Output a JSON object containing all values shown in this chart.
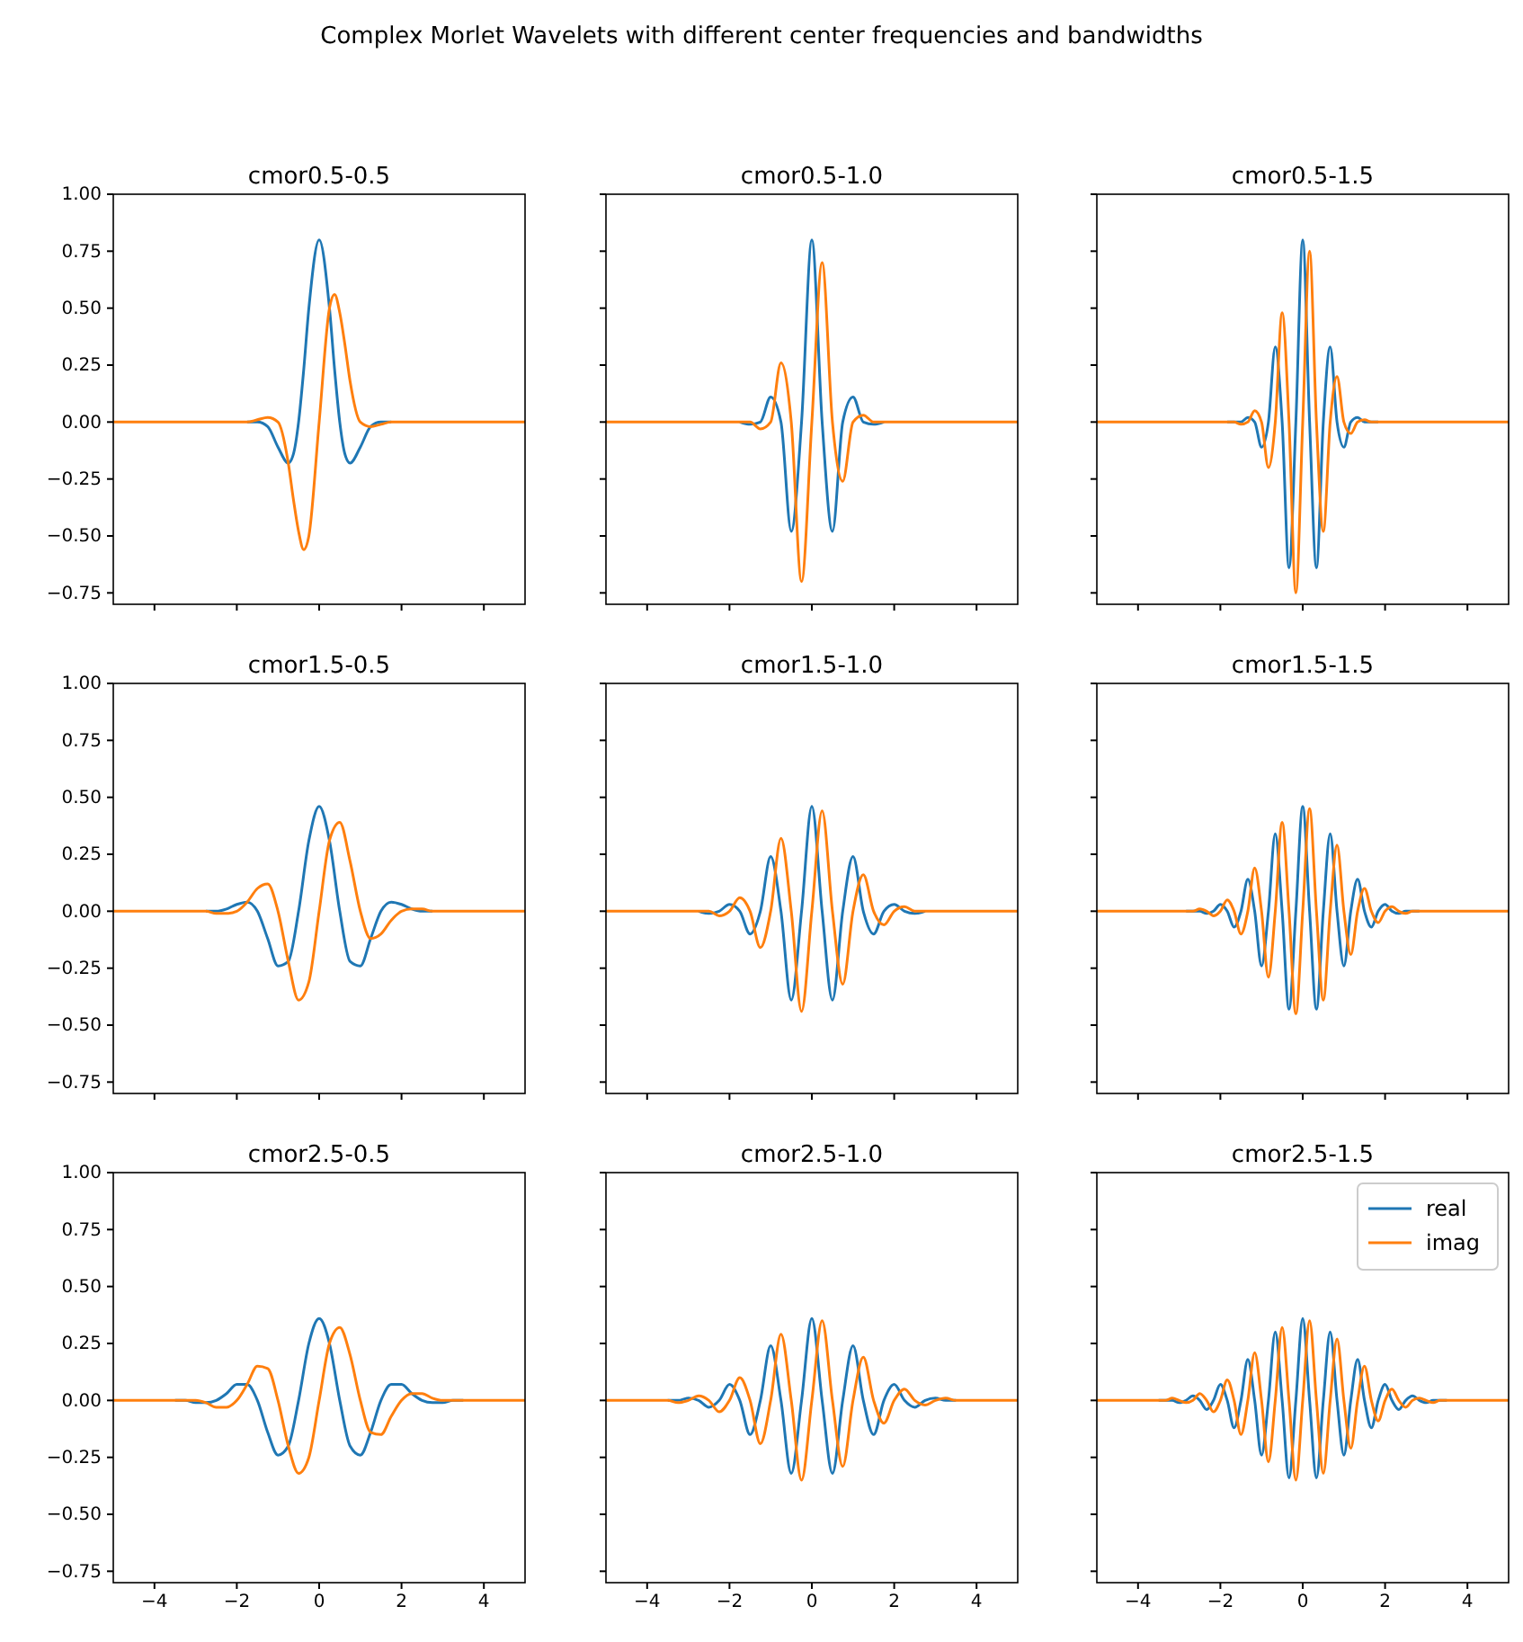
{
  "chart_data": [
    {
      "type": "line",
      "title": "cmor0.5-0.5",
      "annotations": [
        "Complex Morlet Wavelets with different center frequencies and bandwidths"
      ],
      "xlim": [
        -5,
        5
      ],
      "ylim": [
        -0.8,
        1.0
      ],
      "xticks": [
        {
          "value": -4,
          "label": null
        },
        {
          "value": -2,
          "label": null
        },
        {
          "value": 0,
          "label": null
        },
        {
          "value": 2,
          "label": null
        },
        {
          "value": 4,
          "label": null
        }
      ],
      "yticks": [
        {
          "value": -0.75,
          "label": "−0.75"
        },
        {
          "value": -0.5,
          "label": "−0.50"
        },
        {
          "value": -0.25,
          "label": "−0.25"
        },
        {
          "value": 0,
          "label": "0.00"
        },
        {
          "value": 0.25,
          "label": "0.25"
        },
        {
          "value": 0.5,
          "label": "0.50"
        },
        {
          "value": 0.75,
          "label": "0.75"
        },
        {
          "value": 1,
          "label": "1.00"
        }
      ],
      "tick_labels": "y",
      "x": [
        -5,
        -2,
        -1.75,
        -1.5,
        -1.25,
        -1,
        -0.75,
        -0.625,
        -0.5,
        -0.375,
        -0.25,
        0,
        0.25,
        0.375,
        0.5,
        0.625,
        0.75,
        1,
        1.25,
        1.5,
        1.75,
        2,
        5
      ],
      "series": [
        {
          "color": "#1f77b4",
          "values": [
            null,
            null,
            0,
            0,
            -0.02,
            -0.11,
            -0.18,
            -0.14,
            0,
            0.23,
            0.5,
            0.8,
            0.5,
            0.23,
            0,
            -0.14,
            -0.18,
            -0.11,
            -0.02,
            0,
            0,
            null,
            null
          ]
        },
        {
          "color": "#ff7f0e",
          "values": [
            0,
            0,
            0,
            0.01,
            0.02,
            0,
            -0.18,
            -0.34,
            -0.48,
            -0.56,
            -0.5,
            0,
            0.5,
            0.56,
            0.48,
            0.34,
            0.18,
            0,
            -0.02,
            -0.01,
            0,
            0,
            0
          ]
        }
      ]
    },
    {
      "type": "line",
      "title": "cmor0.5-1.0",
      "xlim": [
        -5,
        5
      ],
      "ylim": [
        -0.8,
        1.0
      ],
      "xticks": [
        {
          "value": -4,
          "label": null
        },
        {
          "value": -2,
          "label": null
        },
        {
          "value": 0,
          "label": null
        },
        {
          "value": 2,
          "label": null
        },
        {
          "value": 4,
          "label": null
        }
      ],
      "yticks": [
        {
          "value": -0.75,
          "label": null
        },
        {
          "value": -0.5,
          "label": null
        },
        {
          "value": -0.25,
          "label": null
        },
        {
          "value": 0,
          "label": null
        },
        {
          "value": 0.25,
          "label": null
        },
        {
          "value": 0.5,
          "label": null
        },
        {
          "value": 0.75,
          "label": null
        },
        {
          "value": 1,
          "label": null
        }
      ],
      "tick_labels": false,
      "x": [
        -5,
        -2,
        -1.75,
        -1.5,
        -1.25,
        -1,
        -0.75,
        -0.5,
        -0.25,
        0,
        0.25,
        0.5,
        0.75,
        1,
        1.25,
        1.5,
        1.75,
        2,
        5
      ],
      "series": [
        {
          "color": "#1f77b4",
          "values": [
            null,
            null,
            0,
            -0.01,
            0,
            0.11,
            0,
            -0.48,
            0,
            0.8,
            0,
            -0.48,
            0,
            0.11,
            0,
            -0.01,
            0,
            null,
            null
          ]
        },
        {
          "color": "#ff7f0e",
          "values": [
            0,
            0,
            0,
            0,
            -0.03,
            0,
            0.26,
            0,
            -0.7,
            0,
            0.7,
            0,
            -0.26,
            0,
            0.03,
            0,
            0,
            0,
            0
          ]
        }
      ]
    },
    {
      "type": "line",
      "title": "cmor0.5-1.5",
      "xlim": [
        -5,
        5
      ],
      "ylim": [
        -0.8,
        1.0
      ],
      "xticks": [
        {
          "value": -4,
          "label": null
        },
        {
          "value": -2,
          "label": null
        },
        {
          "value": 0,
          "label": null
        },
        {
          "value": 2,
          "label": null
        },
        {
          "value": 4,
          "label": null
        }
      ],
      "yticks": [
        {
          "value": -0.75,
          "label": null
        },
        {
          "value": -0.5,
          "label": null
        },
        {
          "value": -0.25,
          "label": null
        },
        {
          "value": 0,
          "label": null
        },
        {
          "value": 0.25,
          "label": null
        },
        {
          "value": 0.5,
          "label": null
        },
        {
          "value": 0.75,
          "label": null
        },
        {
          "value": 1,
          "label": null
        }
      ],
      "tick_labels": false,
      "x": [
        -5,
        -2,
        -1.833,
        -1.667,
        -1.5,
        -1.333,
        -1.167,
        -1,
        -0.833,
        -0.667,
        -0.5,
        -0.333,
        -0.167,
        0,
        0.167,
        0.333,
        0.5,
        0.667,
        0.833,
        1,
        1.167,
        1.333,
        1.5,
        1.667,
        1.833,
        2,
        5
      ],
      "series": [
        {
          "color": "#1f77b4",
          "values": [
            null,
            null,
            0,
            0,
            0,
            0.02,
            0,
            -0.11,
            0,
            0.33,
            0,
            -0.64,
            0,
            0.8,
            0,
            -0.64,
            0,
            0.33,
            0,
            -0.11,
            0,
            0.02,
            0,
            0,
            0,
            null,
            null
          ]
        },
        {
          "color": "#ff7f0e",
          "values": [
            0,
            0,
            0,
            0,
            -0.01,
            0,
            0.05,
            0,
            -0.2,
            0,
            0.48,
            0,
            -0.75,
            0,
            0.75,
            0,
            -0.48,
            0,
            0.2,
            0,
            -0.05,
            0,
            0.01,
            0,
            0,
            0,
            0
          ]
        }
      ]
    },
    {
      "type": "line",
      "title": "cmor1.5-0.5",
      "xlim": [
        -5,
        5
      ],
      "ylim": [
        -0.8,
        1.0
      ],
      "xticks": [
        {
          "value": -4,
          "label": null
        },
        {
          "value": -2,
          "label": null
        },
        {
          "value": 0,
          "label": null
        },
        {
          "value": 2,
          "label": null
        },
        {
          "value": 4,
          "label": null
        }
      ],
      "yticks": [
        {
          "value": -0.75,
          "label": "−0.75"
        },
        {
          "value": -0.5,
          "label": "−0.50"
        },
        {
          "value": -0.25,
          "label": "−0.25"
        },
        {
          "value": 0,
          "label": "0.00"
        },
        {
          "value": 0.25,
          "label": "0.25"
        },
        {
          "value": 0.5,
          "label": "0.50"
        },
        {
          "value": 0.75,
          "label": "0.75"
        },
        {
          "value": 1,
          "label": "1.00"
        }
      ],
      "tick_labels": "y",
      "x": [
        -5,
        -3,
        -2.75,
        -2.5,
        -2.25,
        -2,
        -1.75,
        -1.5,
        -1.25,
        -1,
        -0.75,
        -0.5,
        -0.25,
        0,
        0.25,
        0.5,
        0.75,
        1,
        1.25,
        1.5,
        1.75,
        2,
        2.25,
        2.5,
        2.75,
        3,
        5
      ],
      "series": [
        {
          "color": "#1f77b4",
          "values": [
            null,
            null,
            0,
            0,
            0.01,
            0.03,
            0.04,
            0,
            -0.12,
            -0.24,
            -0.22,
            0,
            0.31,
            0.46,
            0.31,
            0,
            -0.22,
            -0.24,
            -0.12,
            0,
            0.04,
            0.03,
            0.01,
            0,
            0,
            null,
            null
          ]
        },
        {
          "color": "#ff7f0e",
          "values": [
            0,
            0,
            0,
            -0.01,
            -0.01,
            0,
            0.04,
            0.1,
            0.12,
            0,
            -0.22,
            -0.39,
            -0.31,
            0,
            0.31,
            0.39,
            0.22,
            0,
            -0.12,
            -0.1,
            -0.04,
            0,
            0.01,
            0.01,
            0,
            0,
            0
          ]
        }
      ]
    },
    {
      "type": "line",
      "title": "cmor1.5-1.0",
      "xlim": [
        -5,
        5
      ],
      "ylim": [
        -0.8,
        1.0
      ],
      "xticks": [
        {
          "value": -4,
          "label": null
        },
        {
          "value": -2,
          "label": null
        },
        {
          "value": 0,
          "label": null
        },
        {
          "value": 2,
          "label": null
        },
        {
          "value": 4,
          "label": null
        }
      ],
      "yticks": [
        {
          "value": -0.75,
          "label": null
        },
        {
          "value": -0.5,
          "label": null
        },
        {
          "value": -0.25,
          "label": null
        },
        {
          "value": 0,
          "label": null
        },
        {
          "value": 0.25,
          "label": null
        },
        {
          "value": 0.5,
          "label": null
        },
        {
          "value": 0.75,
          "label": null
        },
        {
          "value": 1,
          "label": null
        }
      ],
      "tick_labels": false,
      "x": [
        -5,
        -3,
        -2.75,
        -2.5,
        -2.25,
        -2,
        -1.75,
        -1.5,
        -1.25,
        -1,
        -0.75,
        -0.5,
        -0.25,
        0,
        0.25,
        0.5,
        0.75,
        1,
        1.25,
        1.5,
        1.75,
        2,
        2.25,
        2.5,
        2.75,
        3,
        5
      ],
      "series": [
        {
          "color": "#1f77b4",
          "values": [
            null,
            null,
            0,
            -0.01,
            0,
            0.03,
            0,
            -0.1,
            0,
            0.24,
            0,
            -0.39,
            0,
            0.46,
            0,
            -0.39,
            0,
            0.24,
            0,
            -0.1,
            0,
            0.03,
            0,
            -0.01,
            0,
            null,
            null
          ]
        },
        {
          "color": "#ff7f0e",
          "values": [
            0,
            0,
            0,
            0,
            -0.02,
            0,
            0.06,
            0,
            -0.16,
            0,
            0.32,
            0,
            -0.44,
            0,
            0.44,
            0,
            -0.32,
            0,
            0.16,
            0,
            -0.06,
            0,
            0.02,
            0,
            0,
            0,
            0
          ]
        }
      ]
    },
    {
      "type": "line",
      "title": "cmor1.5-1.5",
      "xlim": [
        -5,
        5
      ],
      "ylim": [
        -0.8,
        1.0
      ],
      "xticks": [
        {
          "value": -4,
          "label": null
        },
        {
          "value": -2,
          "label": null
        },
        {
          "value": 0,
          "label": null
        },
        {
          "value": 2,
          "label": null
        },
        {
          "value": 4,
          "label": null
        }
      ],
      "yticks": [
        {
          "value": -0.75,
          "label": null
        },
        {
          "value": -0.5,
          "label": null
        },
        {
          "value": -0.25,
          "label": null
        },
        {
          "value": 0,
          "label": null
        },
        {
          "value": 0.25,
          "label": null
        },
        {
          "value": 0.5,
          "label": null
        },
        {
          "value": 0.75,
          "label": null
        },
        {
          "value": 1,
          "label": null
        }
      ],
      "tick_labels": false,
      "x": [
        -5,
        -3,
        -2.833,
        -2.667,
        -2.5,
        -2.333,
        -2.167,
        -2,
        -1.833,
        -1.667,
        -1.5,
        -1.333,
        -1.167,
        -1,
        -0.833,
        -0.667,
        -0.5,
        -0.333,
        -0.167,
        0,
        0.167,
        0.333,
        0.5,
        0.667,
        0.833,
        1,
        1.167,
        1.333,
        1.5,
        1.667,
        1.833,
        2,
        2.167,
        2.333,
        2.5,
        2.667,
        2.833,
        3,
        5
      ],
      "series": [
        {
          "color": "#1f77b4",
          "values": [
            null,
            null,
            0,
            0,
            0,
            -0.01,
            0,
            0.03,
            0,
            -0.07,
            0,
            0.14,
            0,
            -0.24,
            0,
            0.34,
            0,
            -0.43,
            0,
            0.46,
            0,
            -0.43,
            0,
            0.34,
            0,
            -0.24,
            0,
            0.14,
            0,
            -0.07,
            0,
            0.03,
            0,
            -0.01,
            0,
            0,
            0,
            null,
            null
          ]
        },
        {
          "color": "#ff7f0e",
          "values": [
            0,
            0,
            0,
            0,
            0.01,
            0,
            -0.02,
            0,
            0.05,
            0,
            -0.1,
            0,
            0.19,
            0,
            -0.29,
            0,
            0.39,
            0,
            -0.45,
            0,
            0.45,
            0,
            -0.39,
            0,
            0.29,
            0,
            -0.19,
            0,
            0.1,
            0,
            -0.05,
            0,
            0.02,
            0,
            -0.01,
            0,
            0,
            0,
            0
          ]
        }
      ]
    },
    {
      "type": "line",
      "title": "cmor2.5-0.5",
      "xlim": [
        -5,
        5
      ],
      "ylim": [
        -0.8,
        1.0
      ],
      "xticks": [
        {
          "value": -4,
          "label": "−4"
        },
        {
          "value": -2,
          "label": "−2"
        },
        0,
        2,
        4
      ],
      "yticks": [
        {
          "value": -0.75,
          "label": "−0.75"
        },
        {
          "value": -0.5,
          "label": "−0.50"
        },
        {
          "value": -0.25,
          "label": "−0.25"
        },
        {
          "value": 0,
          "label": "0.00"
        },
        {
          "value": 0.25,
          "label": "0.25"
        },
        {
          "value": 0.5,
          "label": "0.50"
        },
        {
          "value": 0.75,
          "label": "0.75"
        },
        {
          "value": 1,
          "label": "1.00"
        }
      ],
      "x": [
        -5,
        -3.75,
        -3.5,
        -3.25,
        -3,
        -2.75,
        -2.5,
        -2.25,
        -2,
        -1.75,
        -1.5,
        -1.25,
        -1,
        -0.75,
        -0.5,
        -0.25,
        0,
        0.25,
        0.5,
        0.75,
        1,
        1.25,
        1.5,
        1.75,
        2,
        2.25,
        2.5,
        2.75,
        3,
        3.25,
        3.5,
        3.75,
        5
      ],
      "series": [
        {
          "color": "#1f77b4",
          "values": [
            null,
            null,
            0,
            0,
            -0.01,
            -0.01,
            0,
            0.03,
            0.07,
            0.07,
            0,
            -0.14,
            -0.24,
            -0.2,
            0,
            0.25,
            0.36,
            0.25,
            0,
            -0.2,
            -0.24,
            -0.14,
            0,
            0.07,
            0.07,
            0.03,
            0,
            -0.01,
            -0.01,
            0,
            0,
            null,
            null
          ]
        },
        {
          "color": "#ff7f0e",
          "values": [
            0,
            0,
            0,
            0,
            0,
            -0.01,
            -0.03,
            -0.03,
            0,
            0.07,
            0.15,
            0.14,
            0,
            -0.2,
            -0.32,
            -0.25,
            0,
            0.25,
            0.32,
            0.2,
            0,
            -0.14,
            -0.15,
            -0.07,
            0,
            0.03,
            0.03,
            0.01,
            0,
            0,
            0,
            0,
            0
          ]
        }
      ]
    },
    {
      "type": "line",
      "title": "cmor2.5-1.0",
      "xlim": [
        -5,
        5
      ],
      "ylim": [
        -0.8,
        1.0
      ],
      "xticks": [
        {
          "value": -4,
          "label": "−4"
        },
        {
          "value": -2,
          "label": "−2"
        },
        0,
        2,
        4
      ],
      "yticks": [
        {
          "value": -0.75,
          "label": null
        },
        {
          "value": -0.5,
          "label": null
        },
        {
          "value": -0.25,
          "label": null
        },
        {
          "value": 0,
          "label": null
        },
        {
          "value": 0.25,
          "label": null
        },
        {
          "value": 0.5,
          "label": null
        },
        {
          "value": 0.75,
          "label": null
        },
        {
          "value": 1,
          "label": null
        }
      ],
      "tick_labels": "x",
      "x": [
        -5,
        -3.75,
        -3.5,
        -3.25,
        -3,
        -2.75,
        -2.5,
        -2.25,
        -2,
        -1.75,
        -1.5,
        -1.25,
        -1,
        -0.75,
        -0.5,
        -0.25,
        0,
        0.25,
        0.5,
        0.75,
        1,
        1.25,
        1.5,
        1.75,
        2,
        2.25,
        2.5,
        2.75,
        3,
        3.25,
        3.5,
        3.75,
        5
      ],
      "series": [
        {
          "color": "#1f77b4",
          "values": [
            null,
            null,
            0,
            0,
            0.01,
            0,
            -0.03,
            0,
            0.07,
            0,
            -0.15,
            0,
            0.24,
            0,
            -0.32,
            0,
            0.36,
            0,
            -0.32,
            0,
            0.24,
            0,
            -0.15,
            0,
            0.07,
            0,
            -0.03,
            0,
            0.01,
            0,
            0,
            null,
            null
          ]
        },
        {
          "color": "#ff7f0e",
          "values": [
            0,
            0,
            0,
            -0.01,
            0,
            0.02,
            0,
            -0.05,
            0,
            0.1,
            0,
            -0.19,
            0,
            0.29,
            0,
            -0.35,
            0,
            0.35,
            0,
            -0.29,
            0,
            0.19,
            0,
            -0.1,
            0,
            0.05,
            0,
            -0.02,
            0,
            0.01,
            0,
            0,
            0
          ]
        }
      ]
    },
    {
      "type": "line",
      "title": "cmor2.5-1.5",
      "xlim": [
        -5,
        5
      ],
      "ylim": [
        -0.8,
        1.0
      ],
      "xticks": [
        {
          "value": -4,
          "label": "−4"
        },
        {
          "value": -2,
          "label": "−2"
        },
        0,
        2,
        4
      ],
      "yticks": [
        {
          "value": -0.75,
          "label": null
        },
        {
          "value": -0.5,
          "label": null
        },
        {
          "value": -0.25,
          "label": null
        },
        {
          "value": 0,
          "label": null
        },
        {
          "value": 0.25,
          "label": null
        },
        {
          "value": 0.5,
          "label": null
        },
        {
          "value": 0.75,
          "label": null
        },
        {
          "value": 1,
          "label": null
        }
      ],
      "tick_labels": "x",
      "legend": "top right",
      "x": [
        -5,
        -3.667,
        -3.5,
        -3.333,
        -3.167,
        -3,
        -2.833,
        -2.667,
        -2.5,
        -2.333,
        -2.167,
        -2,
        -1.833,
        -1.667,
        -1.5,
        -1.333,
        -1.167,
        -1,
        -0.833,
        -0.667,
        -0.5,
        -0.333,
        -0.167,
        0,
        0.167,
        0.333,
        0.5,
        0.667,
        0.833,
        1,
        1.167,
        1.333,
        1.5,
        1.667,
        1.833,
        2,
        2.167,
        2.333,
        2.5,
        2.667,
        2.833,
        3,
        3.167,
        3.333,
        3.5,
        3.667,
        5
      ],
      "series": [
        {
          "name": "real",
          "color": "#1f77b4",
          "values": [
            null,
            null,
            0,
            0,
            0,
            -0.01,
            0,
            0.02,
            0,
            -0.04,
            0,
            0.07,
            0,
            -0.12,
            0,
            0.18,
            0,
            -0.24,
            0,
            0.3,
            0,
            -0.34,
            0,
            0.36,
            0,
            -0.34,
            0,
            0.3,
            0,
            -0.24,
            0,
            0.18,
            0,
            -0.12,
            0,
            0.07,
            0,
            -0.04,
            0,
            0.02,
            0,
            -0.01,
            0,
            0,
            0,
            null,
            null
          ]
        },
        {
          "name": "imag",
          "color": "#ff7f0e",
          "values": [
            0,
            0,
            0,
            0,
            0.01,
            0,
            -0.01,
            0,
            0.03,
            0,
            -0.05,
            0,
            0.09,
            0,
            -0.15,
            0,
            0.21,
            0,
            -0.27,
            0,
            0.32,
            0,
            -0.35,
            0,
            0.35,
            0,
            -0.32,
            0,
            0.27,
            0,
            -0.21,
            0,
            0.15,
            0,
            -0.09,
            0,
            0.05,
            0,
            -0.03,
            0,
            0.01,
            0,
            -0.01,
            0,
            0,
            0,
            0
          ]
        }
      ]
    }
  ]
}
